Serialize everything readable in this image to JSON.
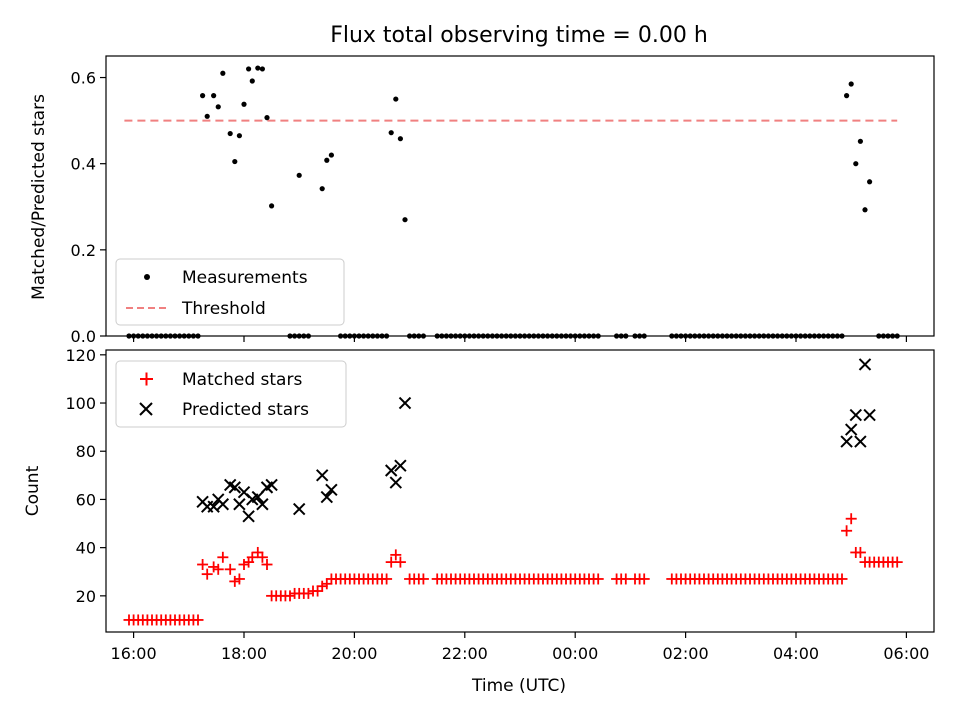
{
  "chart_data": [
    {
      "type": "scatter",
      "title": "Flux total observing time = 0.00 h",
      "ylabel": "Matched/Predicted stars",
      "ylim": [
        0,
        0.65
      ],
      "yticks": [
        0.0,
        0.2,
        0.4,
        0.6
      ],
      "ytick_labels": [
        "0.0",
        "0.2",
        "0.4",
        "0.6"
      ],
      "xlim": [
        "15:30",
        "06:30"
      ],
      "legend": {
        "placement": "lower-left",
        "entries": [
          "Measurements",
          "Threshold"
        ]
      },
      "colors": {
        "measurements": "#000000",
        "threshold": "#f08080"
      },
      "series": [
        {
          "name": "Measurements",
          "points": [
            [
              "17:15",
              0.558
            ],
            [
              "17:20",
              0.51
            ],
            [
              "17:27",
              0.558
            ],
            [
              "17:32",
              0.532
            ],
            [
              "17:37",
              0.61
            ],
            [
              "17:45",
              0.47
            ],
            [
              "17:50",
              0.405
            ],
            [
              "17:55",
              0.465
            ],
            [
              "18:00",
              0.538
            ],
            [
              "18:05",
              0.62
            ],
            [
              "18:09",
              0.592
            ],
            [
              "18:15",
              0.622
            ],
            [
              "18:20",
              0.62
            ],
            [
              "18:25",
              0.507
            ],
            [
              "18:30",
              0.302
            ],
            [
              "19:00",
              0.373
            ],
            [
              "19:25",
              0.342
            ],
            [
              "19:30",
              0.408
            ],
            [
              "19:35",
              0.42
            ],
            [
              "20:40",
              0.472
            ],
            [
              "20:45",
              0.55
            ],
            [
              "20:50",
              0.458
            ],
            [
              "20:55",
              0.27
            ],
            [
              "04:55",
              0.558
            ],
            [
              "05:00",
              0.585
            ],
            [
              "05:05",
              0.4
            ],
            [
              "05:10",
              0.452
            ],
            [
              "05:15",
              0.293
            ],
            [
              "05:20",
              0.358
            ]
          ]
        },
        {
          "name": "Threshold",
          "value": 0.5,
          "x_range": [
            "15:50",
            "05:50"
          ]
        }
      ],
      "zero_points_ranges": [
        [
          "15:55",
          "17:10"
        ],
        [
          "18:50",
          "19:10"
        ],
        [
          "19:45",
          "20:35"
        ],
        [
          "21:00",
          "21:15"
        ],
        [
          "21:30",
          "00:25"
        ],
        [
          "00:45",
          "00:55"
        ],
        [
          "01:05",
          "01:15"
        ],
        [
          "01:45",
          "04:50"
        ],
        [
          "05:30",
          "05:50"
        ]
      ]
    },
    {
      "type": "scatter",
      "xlabel": "Time (UTC)",
      "ylabel": "Count",
      "ylim": [
        5,
        122
      ],
      "yticks": [
        20,
        40,
        60,
        80,
        100,
        120
      ],
      "ytick_labels": [
        "20",
        "40",
        "60",
        "80",
        "100",
        "120"
      ],
      "xlim": [
        "15:30",
        "06:30"
      ],
      "xticks": [
        "16:00",
        "18:00",
        "20:00",
        "22:00",
        "00:00",
        "02:00",
        "04:00",
        "06:00"
      ],
      "xtick_labels": [
        "16:00",
        "18:00",
        "20:00",
        "22:00",
        "00:00",
        "02:00",
        "04:00",
        "06:00"
      ],
      "legend": {
        "placement": "upper-left",
        "entries": [
          "Matched stars",
          "Predicted stars"
        ]
      },
      "colors": {
        "matched": "#ff0000",
        "predicted": "#000000"
      },
      "series": [
        {
          "name": "Matched stars",
          "points": [
            [
              "15:55",
              10
            ],
            [
              "16:00",
              10
            ],
            [
              "16:05",
              10
            ],
            [
              "16:10",
              10
            ],
            [
              "16:15",
              10
            ],
            [
              "16:20",
              10
            ],
            [
              "16:25",
              10
            ],
            [
              "16:30",
              10
            ],
            [
              "16:35",
              10
            ],
            [
              "16:40",
              10
            ],
            [
              "16:45",
              10
            ],
            [
              "16:50",
              10
            ],
            [
              "16:55",
              10
            ],
            [
              "17:00",
              10
            ],
            [
              "17:05",
              10
            ],
            [
              "17:10",
              10
            ],
            [
              "17:15",
              33
            ],
            [
              "17:20",
              29
            ],
            [
              "17:27",
              32
            ],
            [
              "17:32",
              31
            ],
            [
              "17:37",
              36
            ],
            [
              "17:45",
              31
            ],
            [
              "17:50",
              26
            ],
            [
              "17:55",
              27
            ],
            [
              "18:00",
              33
            ],
            [
              "18:05",
              34
            ],
            [
              "18:09",
              36
            ],
            [
              "18:15",
              38
            ],
            [
              "18:20",
              36
            ],
            [
              "18:25",
              33
            ],
            [
              "18:30",
              20
            ],
            [
              "18:35",
              20
            ],
            [
              "18:40",
              20
            ],
            [
              "18:45",
              20
            ],
            [
              "18:50",
              20
            ],
            [
              "18:55",
              21
            ],
            [
              "19:00",
              21
            ],
            [
              "19:05",
              21
            ],
            [
              "19:10",
              21
            ],
            [
              "19:15",
              22
            ],
            [
              "19:20",
              22
            ],
            [
              "19:25",
              24
            ],
            [
              "19:30",
              25
            ],
            [
              "19:35",
              27
            ],
            [
              "19:40",
              27
            ],
            [
              "19:45",
              27
            ],
            [
              "19:50",
              27
            ],
            [
              "19:55",
              27
            ],
            [
              "20:00",
              27
            ],
            [
              "20:05",
              27
            ],
            [
              "20:10",
              27
            ],
            [
              "20:15",
              27
            ],
            [
              "20:20",
              27
            ],
            [
              "20:25",
              27
            ],
            [
              "20:30",
              27
            ],
            [
              "20:35",
              27
            ],
            [
              "20:40",
              34
            ],
            [
              "20:45",
              37
            ],
            [
              "20:50",
              34
            ],
            [
              "21:00",
              27
            ],
            [
              "21:05",
              27
            ],
            [
              "21:10",
              27
            ],
            [
              "21:15",
              27
            ],
            [
              "21:30",
              27
            ],
            [
              "21:35",
              27
            ],
            [
              "21:40",
              27
            ],
            [
              "21:45",
              27
            ],
            [
              "21:50",
              27
            ],
            [
              "21:55",
              27
            ],
            [
              "22:00",
              27
            ],
            [
              "22:05",
              27
            ],
            [
              "22:10",
              27
            ],
            [
              "22:15",
              27
            ],
            [
              "22:20",
              27
            ],
            [
              "22:25",
              27
            ],
            [
              "22:30",
              27
            ],
            [
              "22:35",
              27
            ],
            [
              "22:40",
              27
            ],
            [
              "22:45",
              27
            ],
            [
              "22:50",
              27
            ],
            [
              "22:55",
              27
            ],
            [
              "23:00",
              27
            ],
            [
              "23:05",
              27
            ],
            [
              "23:10",
              27
            ],
            [
              "23:15",
              27
            ],
            [
              "23:20",
              27
            ],
            [
              "23:25",
              27
            ],
            [
              "23:30",
              27
            ],
            [
              "23:35",
              27
            ],
            [
              "23:40",
              27
            ],
            [
              "23:45",
              27
            ],
            [
              "23:50",
              27
            ],
            [
              "23:55",
              27
            ],
            [
              "00:00",
              27
            ],
            [
              "00:05",
              27
            ],
            [
              "00:10",
              27
            ],
            [
              "00:15",
              27
            ],
            [
              "00:20",
              27
            ],
            [
              "00:25",
              27
            ],
            [
              "00:45",
              27
            ],
            [
              "00:50",
              27
            ],
            [
              "00:55",
              27
            ],
            [
              "01:05",
              27
            ],
            [
              "01:10",
              27
            ],
            [
              "01:15",
              27
            ],
            [
              "01:45",
              27
            ],
            [
              "01:50",
              27
            ],
            [
              "01:55",
              27
            ],
            [
              "02:00",
              27
            ],
            [
              "02:05",
              27
            ],
            [
              "02:10",
              27
            ],
            [
              "02:15",
              27
            ],
            [
              "02:20",
              27
            ],
            [
              "02:25",
              27
            ],
            [
              "02:30",
              27
            ],
            [
              "02:35",
              27
            ],
            [
              "02:40",
              27
            ],
            [
              "02:45",
              27
            ],
            [
              "02:50",
              27
            ],
            [
              "02:55",
              27
            ],
            [
              "03:00",
              27
            ],
            [
              "03:05",
              27
            ],
            [
              "03:10",
              27
            ],
            [
              "03:15",
              27
            ],
            [
              "03:20",
              27
            ],
            [
              "03:25",
              27
            ],
            [
              "03:30",
              27
            ],
            [
              "03:35",
              27
            ],
            [
              "03:40",
              27
            ],
            [
              "03:45",
              27
            ],
            [
              "03:50",
              27
            ],
            [
              "03:55",
              27
            ],
            [
              "04:00",
              27
            ],
            [
              "04:05",
              27
            ],
            [
              "04:10",
              27
            ],
            [
              "04:15",
              27
            ],
            [
              "04:20",
              27
            ],
            [
              "04:25",
              27
            ],
            [
              "04:30",
              27
            ],
            [
              "04:35",
              27
            ],
            [
              "04:40",
              27
            ],
            [
              "04:45",
              27
            ],
            [
              "04:50",
              27
            ],
            [
              "04:55",
              47
            ],
            [
              "05:00",
              52
            ],
            [
              "05:05",
              38
            ],
            [
              "05:10",
              38
            ],
            [
              "05:15",
              34
            ],
            [
              "05:20",
              34
            ],
            [
              "05:25",
              34
            ],
            [
              "05:30",
              34
            ],
            [
              "05:35",
              34
            ],
            [
              "05:40",
              34
            ],
            [
              "05:45",
              34
            ],
            [
              "05:50",
              34
            ]
          ]
        },
        {
          "name": "Predicted stars",
          "points": [
            [
              "17:15",
              59
            ],
            [
              "17:20",
              57
            ],
            [
              "17:27",
              57
            ],
            [
              "17:32",
              60
            ],
            [
              "17:37",
              58
            ],
            [
              "17:45",
              66
            ],
            [
              "17:50",
              65
            ],
            [
              "17:55",
              58
            ],
            [
              "18:00",
              63
            ],
            [
              "18:05",
              53
            ],
            [
              "18:09",
              60
            ],
            [
              "18:15",
              61
            ],
            [
              "18:20",
              58
            ],
            [
              "18:25",
              65
            ],
            [
              "18:30",
              66
            ],
            [
              "19:00",
              56
            ],
            [
              "19:25",
              70
            ],
            [
              "19:30",
              61
            ],
            [
              "19:35",
              64
            ],
            [
              "20:40",
              72
            ],
            [
              "20:45",
              67
            ],
            [
              "20:50",
              74
            ],
            [
              "20:55",
              100
            ],
            [
              "04:55",
              84
            ],
            [
              "05:00",
              89
            ],
            [
              "05:05",
              95
            ],
            [
              "05:10",
              84
            ],
            [
              "05:15",
              116
            ],
            [
              "05:20",
              95
            ]
          ]
        }
      ]
    }
  ]
}
